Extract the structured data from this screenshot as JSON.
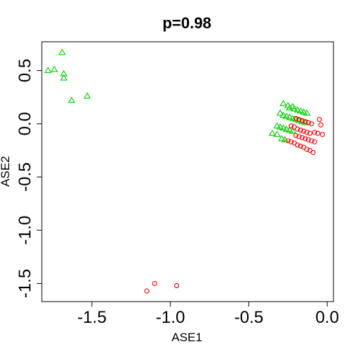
{
  "chart_data": {
    "type": "scatter",
    "title": "p=0.98",
    "xlabel": "ASE1",
    "ylabel": "ASE2",
    "xlim": [
      -1.82,
      0.04
    ],
    "ylim": [
      -1.67,
      0.77
    ],
    "x_ticks": [
      -1.5,
      -1.0,
      -0.5,
      0.0
    ],
    "x_tick_labels": [
      "-1.5",
      "-1.0",
      "-0.5",
      "0.0"
    ],
    "y_ticks": [
      -1.5,
      -1.0,
      -0.5,
      0.0,
      0.5
    ],
    "y_tick_labels": [
      "-1.5",
      "-1.0",
      "-0.5",
      "0.0",
      "0.5"
    ],
    "grid": false,
    "series": [
      {
        "marker": "triangle",
        "color": "#00cd00",
        "points": [
          [
            -1.69,
            0.67
          ],
          [
            -1.78,
            0.5
          ],
          [
            -1.74,
            0.51
          ],
          [
            -1.68,
            0.47
          ],
          [
            -1.68,
            0.43
          ],
          [
            -1.63,
            0.22
          ],
          [
            -1.53,
            0.26
          ],
          [
            -0.28,
            0.19
          ],
          [
            -0.25,
            0.17
          ],
          [
            -0.24,
            0.15
          ],
          [
            -0.22,
            0.16
          ],
          [
            -0.21,
            0.14
          ],
          [
            -0.19,
            0.13
          ],
          [
            -0.17,
            0.12
          ],
          [
            -0.15,
            0.11
          ],
          [
            -0.13,
            0.1
          ],
          [
            -0.3,
            0.1
          ],
          [
            -0.28,
            0.08
          ],
          [
            -0.26,
            0.07
          ],
          [
            -0.24,
            0.06
          ],
          [
            -0.22,
            0.05
          ],
          [
            -0.2,
            0.04
          ],
          [
            -0.18,
            0.03
          ],
          [
            -0.16,
            0.02
          ],
          [
            -0.14,
            0.01
          ],
          [
            -0.32,
            -0.02
          ],
          [
            -0.3,
            -0.03
          ],
          [
            -0.28,
            -0.04
          ],
          [
            -0.26,
            -0.05
          ],
          [
            -0.24,
            -0.06
          ],
          [
            -0.22,
            -0.07
          ],
          [
            -0.35,
            -0.09
          ],
          [
            -0.32,
            -0.1
          ],
          [
            -0.29,
            -0.14
          ],
          [
            -0.27,
            -0.15
          ]
        ]
      },
      {
        "marker": "circle",
        "color": "#ff0000",
        "points": [
          [
            -1.15,
            -1.57
          ],
          [
            -1.1,
            -1.5
          ],
          [
            -0.96,
            -1.52
          ],
          [
            -0.2,
            0.05
          ],
          [
            -0.18,
            0.04
          ],
          [
            -0.16,
            0.03
          ],
          [
            -0.14,
            0.02
          ],
          [
            -0.12,
            0.01
          ],
          [
            -0.1,
            0.0
          ],
          [
            -0.05,
            0.04
          ],
          [
            -0.04,
            -0.01
          ],
          [
            -0.23,
            -0.02
          ],
          [
            -0.21,
            -0.03
          ],
          [
            -0.19,
            -0.05
          ],
          [
            -0.17,
            -0.06
          ],
          [
            -0.15,
            -0.07
          ],
          [
            -0.13,
            -0.08
          ],
          [
            -0.11,
            -0.09
          ],
          [
            -0.08,
            -0.08
          ],
          [
            -0.06,
            -0.09
          ],
          [
            -0.03,
            -0.1
          ],
          [
            -0.2,
            -0.11
          ],
          [
            -0.18,
            -0.12
          ],
          [
            -0.16,
            -0.13
          ],
          [
            -0.14,
            -0.14
          ],
          [
            -0.12,
            -0.15
          ],
          [
            -0.1,
            -0.16
          ],
          [
            -0.08,
            -0.17
          ],
          [
            -0.25,
            -0.16
          ],
          [
            -0.23,
            -0.17
          ],
          [
            -0.21,
            -0.18
          ],
          [
            -0.19,
            -0.2
          ],
          [
            -0.17,
            -0.21
          ],
          [
            -0.15,
            -0.22
          ],
          [
            -0.13,
            -0.24
          ],
          [
            -0.11,
            -0.25
          ],
          [
            -0.09,
            -0.27
          ]
        ]
      }
    ]
  }
}
